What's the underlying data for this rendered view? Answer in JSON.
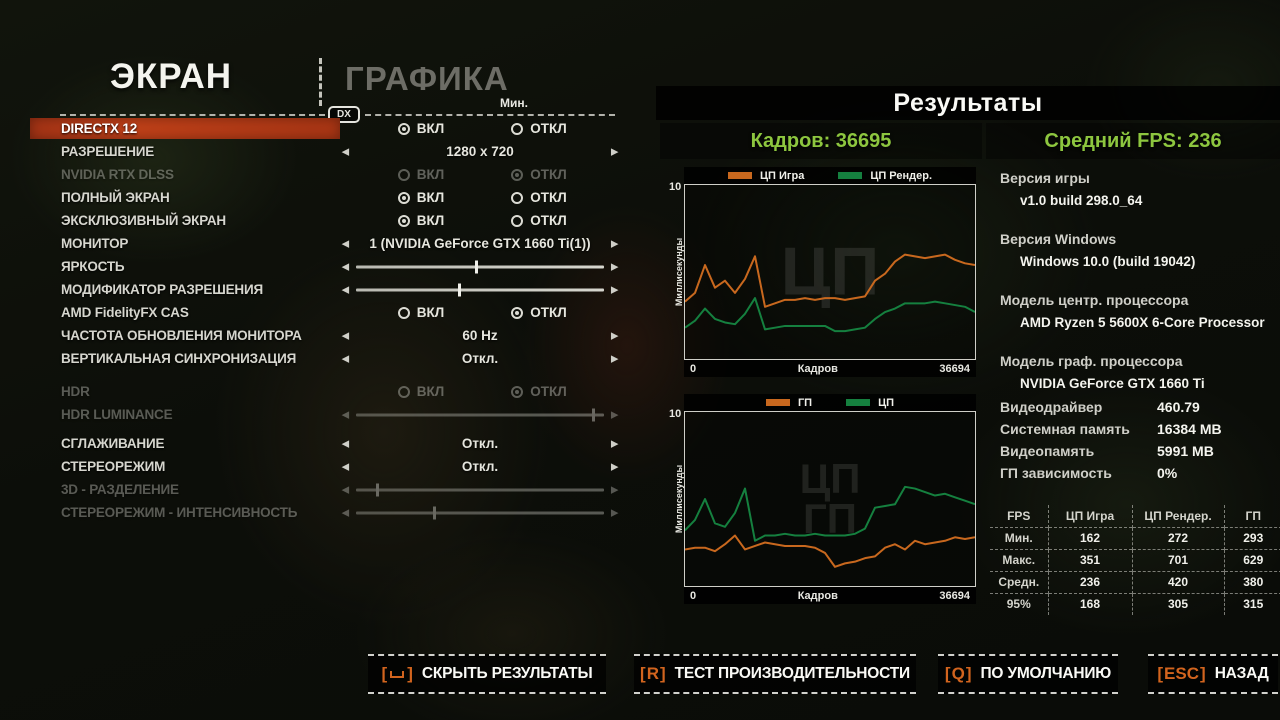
{
  "colors": {
    "accent_orange": "#c1411a",
    "result_green": "#8dc63f",
    "line_orange": "#c8681e",
    "line_green": "#15803f"
  },
  "tabs": {
    "screen": "ЭКРАН",
    "graphics": "ГРАФИКА",
    "dx_badge": "DX",
    "min_column": "Мин."
  },
  "settings": {
    "rows": [
      {
        "label": "DIRECTX 12",
        "control": "radio",
        "on": "ВКЛ",
        "off": "ОТКЛ",
        "selected": "on",
        "highlighted": true
      },
      {
        "label": "РАЗРЕШЕНИЕ",
        "control": "selector",
        "value": "1280 x 720"
      },
      {
        "label": "NVIDIA RTX DLSS",
        "control": "radio",
        "on": "ВКЛ",
        "off": "ОТКЛ",
        "selected": "off",
        "disabled": true
      },
      {
        "label": "ПОЛНЫЙ ЭКРАН",
        "control": "radio",
        "on": "ВКЛ",
        "off": "ОТКЛ",
        "selected": "on"
      },
      {
        "label": "ЭКСКЛЮЗИВНЫЙ ЭКРАН",
        "control": "radio",
        "on": "ВКЛ",
        "off": "ОТКЛ",
        "selected": "on"
      },
      {
        "label": "МОНИТОР",
        "control": "selector",
        "value": "1 (NVIDIA GeForce GTX 1660 Ti(1))"
      },
      {
        "label": "ЯРКОСТЬ",
        "control": "slider",
        "percent": 48
      },
      {
        "label": "МОДИФИКАТОР РАЗРЕШЕНИЯ",
        "control": "slider",
        "percent": 41
      },
      {
        "label": "AMD FidelityFX CAS",
        "control": "radio",
        "on": "ВКЛ",
        "off": "ОТКЛ",
        "selected": "off"
      },
      {
        "label": "ЧАСТОТА ОБНОВЛЕНИЯ МОНИТОРА",
        "control": "selector",
        "value": "60 Hz"
      },
      {
        "label": "ВЕРТИКАЛЬНАЯ СИНХРОНИЗАЦИЯ",
        "control": "selector",
        "value": "Откл."
      },
      {
        "label": "HDR",
        "control": "radio",
        "on": "ВКЛ",
        "off": "ОТКЛ",
        "selected": "off",
        "disabled": true,
        "gap": "lg"
      },
      {
        "label": "HDR LUMINANCE",
        "control": "slider",
        "percent": 95,
        "disabled": true
      },
      {
        "label": "СГЛАЖИВАНИЕ",
        "control": "selector",
        "value": "Откл.",
        "gap": "sm"
      },
      {
        "label": "СТЕРЕОРЕЖИМ",
        "control": "selector",
        "value": "Откл."
      },
      {
        "label": "3D - РАЗДЕЛЕНИЕ",
        "control": "slider",
        "percent": 8,
        "disabled": true
      },
      {
        "label": "СТЕРЕОРЕЖИМ - ИНТЕНСИВНОСТЬ",
        "control": "slider",
        "percent": 31,
        "disabled": true
      }
    ]
  },
  "results": {
    "title": "Результаты",
    "frames_label": "Кадров: 36695",
    "avg_fps_label": "Средний FPS: 236"
  },
  "chart_data": [
    {
      "type": "line",
      "ylabel": "Миллисекунды",
      "xlabel": "Кадров",
      "ylim": [
        0,
        10
      ],
      "x_range": [
        0,
        36694
      ],
      "y_tick_top": "10",
      "x_tick_left": "0",
      "x_tick_right": "36694",
      "watermark": [
        "ЦП"
      ],
      "legend_position": "top",
      "grid": false,
      "series": [
        {
          "name": "ЦП Игра",
          "color": "#c8681e",
          "values": [
            3.3,
            3.8,
            5.4,
            4.1,
            4.5,
            3.8,
            4.6,
            5.9,
            3.0,
            3.2,
            3.4,
            3.4,
            3.5,
            3.4,
            3.5,
            3.5,
            3.4,
            3.5,
            3.6,
            4.5,
            4.9,
            5.6,
            6.0,
            5.9,
            5.8,
            5.9,
            6.0,
            5.7,
            5.5,
            5.4
          ]
        },
        {
          "name": "ЦП Рендер.",
          "color": "#15803f",
          "values": [
            1.8,
            2.2,
            2.9,
            2.3,
            2.1,
            2.0,
            2.6,
            3.5,
            1.7,
            1.8,
            1.9,
            1.9,
            1.9,
            1.9,
            1.9,
            1.6,
            1.6,
            1.7,
            1.8,
            2.3,
            2.7,
            2.9,
            3.2,
            3.2,
            3.2,
            3.3,
            3.2,
            3.1,
            3.0,
            2.7
          ]
        }
      ]
    },
    {
      "type": "line",
      "ylabel": "Миллисекунды",
      "xlabel": "Кадров",
      "ylim": [
        0,
        10
      ],
      "x_range": [
        0,
        36694
      ],
      "y_tick_top": "10",
      "x_tick_left": "0",
      "x_tick_right": "36694",
      "watermark": [
        "ЦП",
        "ГП"
      ],
      "legend_position": "top",
      "grid": false,
      "series": [
        {
          "name": "ГП",
          "color": "#c8681e",
          "values": [
            2.1,
            2.2,
            2.2,
            2.0,
            2.4,
            2.9,
            2.1,
            2.3,
            2.5,
            2.4,
            2.3,
            2.3,
            2.3,
            2.2,
            1.9,
            1.1,
            1.3,
            1.4,
            1.6,
            1.7,
            2.2,
            2.4,
            2.1,
            2.6,
            2.4,
            2.5,
            2.6,
            2.8,
            2.7,
            2.8
          ]
        },
        {
          "name": "ЦП",
          "color": "#15803f",
          "values": [
            3.2,
            3.8,
            5.0,
            3.6,
            3.4,
            4.2,
            5.6,
            2.6,
            2.9,
            2.9,
            3.0,
            2.9,
            2.9,
            3.0,
            2.9,
            2.9,
            2.9,
            3.0,
            3.3,
            4.5,
            4.6,
            4.7,
            5.7,
            5.6,
            5.4,
            5.2,
            5.3,
            5.1,
            4.9,
            4.7
          ]
        }
      ]
    }
  ],
  "system_info": {
    "blocks": [
      {
        "label": "Версия игры",
        "value": "v1.0 build 298.0_64"
      },
      {
        "label": "Версия Windows",
        "value": "Windows 10.0 (build 19042)"
      },
      {
        "label": "Модель центр. процессора",
        "value": "AMD Ryzen 5 5600X 6-Core Processor"
      },
      {
        "label": "Модель граф. процессора",
        "value": "NVIDIA GeForce GTX 1660 Ti"
      }
    ],
    "stats": [
      {
        "label": "Видеодрайвер",
        "value": "460.79"
      },
      {
        "label": "Системная память",
        "value": "16384 MB"
      },
      {
        "label": "Видеопамять",
        "value": "5991 MB"
      },
      {
        "label": "ГП зависимость",
        "value": "0%"
      }
    ]
  },
  "fps_table": {
    "headers": [
      "FPS",
      "ЦП Игра",
      "ЦП Рендер.",
      "ГП"
    ],
    "rows": [
      [
        "Мин.",
        "162",
        "272",
        "293"
      ],
      [
        "Макс.",
        "351",
        "701",
        "629"
      ],
      [
        "Средн.",
        "236",
        "420",
        "380"
      ],
      [
        "95%",
        "168",
        "305",
        "315"
      ]
    ]
  },
  "footer": {
    "buttons": [
      {
        "key": "space",
        "label": "СКРЫТЬ РЕЗУЛЬТАТЫ"
      },
      {
        "key": "R",
        "label": "ТЕСТ ПРОИЗВОДИТЕЛЬНОСТИ"
      },
      {
        "key": "Q",
        "label": "ПО УМОЛЧАНИЮ"
      },
      {
        "key": "ESC",
        "label": "НАЗАД"
      }
    ]
  }
}
